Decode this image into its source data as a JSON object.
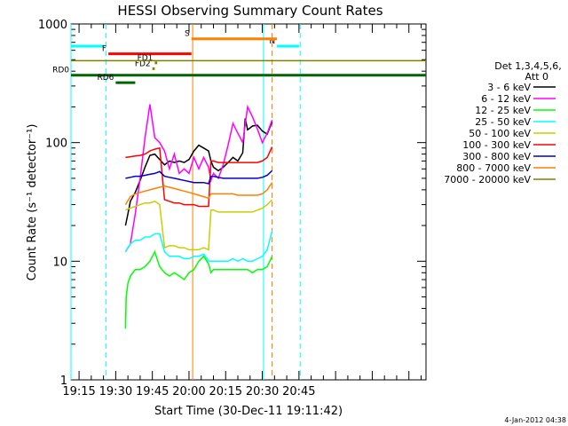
{
  "chart_data": {
    "type": "line",
    "title": "HESSI Observing Summary Count Rates",
    "ylabel": "Count Rate (s⁻¹ detector⁻¹)",
    "xlabel": "Start Time (30-Dec-11 19:11:42)",
    "yscale": "log",
    "ylim": [
      1,
      1000
    ],
    "xlim_minutes": [
      1151.7,
      1297
    ],
    "x_ticks": [
      {
        "label": "19:15",
        "m": 1155
      },
      {
        "label": "19:30",
        "m": 1170
      },
      {
        "label": "19:45",
        "m": 1185
      },
      {
        "label": "20:00",
        "m": 1200
      },
      {
        "label": "20:15",
        "m": 1215
      },
      {
        "label": "20:30",
        "m": 1230
      },
      {
        "label": "20:45",
        "m": 1245
      }
    ],
    "y_ticks": [
      {
        "label": "1",
        "v": 1
      },
      {
        "label": "10",
        "v": 10
      },
      {
        "label": "100",
        "v": 100
      },
      {
        "label": "1000",
        "v": 1000
      }
    ],
    "legend": {
      "title_lines": [
        "Det 1,3,4,5,6,",
        "Att 0"
      ],
      "placement": "right"
    },
    "series": [
      {
        "name": "3 - 6 keV",
        "color": "#000000",
        "points": [
          [
            1174,
            20
          ],
          [
            1175,
            25
          ],
          [
            1176,
            32
          ],
          [
            1178,
            38
          ],
          [
            1180,
            48
          ],
          [
            1182,
            62
          ],
          [
            1184,
            78
          ],
          [
            1186,
            80
          ],
          [
            1188,
            72
          ],
          [
            1190,
            65
          ],
          [
            1192,
            70
          ],
          [
            1194,
            68
          ],
          [
            1196,
            70
          ],
          [
            1198,
            68
          ],
          [
            1200,
            72
          ],
          [
            1202,
            85
          ],
          [
            1204,
            95
          ],
          [
            1206,
            90
          ],
          [
            1208,
            85
          ],
          [
            1209,
            70
          ],
          [
            1210,
            62
          ],
          [
            1212,
            58
          ],
          [
            1214,
            62
          ],
          [
            1216,
            68
          ],
          [
            1218,
            75
          ],
          [
            1220,
            70
          ],
          [
            1222,
            82
          ],
          [
            1223,
            160
          ],
          [
            1224,
            128
          ],
          [
            1226,
            138
          ],
          [
            1228,
            140
          ],
          [
            1230,
            125
          ],
          [
            1232,
            118
          ],
          [
            1234,
            150
          ]
        ]
      },
      {
        "name": "6 - 12 keV",
        "color": "#ff00ff",
        "points": [
          [
            1174,
            12
          ],
          [
            1176,
            14
          ],
          [
            1178,
            25
          ],
          [
            1180,
            50
          ],
          [
            1182,
            110
          ],
          [
            1184,
            210
          ],
          [
            1186,
            110
          ],
          [
            1188,
            100
          ],
          [
            1190,
            85
          ],
          [
            1192,
            60
          ],
          [
            1194,
            80
          ],
          [
            1196,
            55
          ],
          [
            1198,
            60
          ],
          [
            1200,
            55
          ],
          [
            1202,
            75
          ],
          [
            1204,
            60
          ],
          [
            1206,
            75
          ],
          [
            1208,
            62
          ],
          [
            1209,
            48
          ],
          [
            1210,
            55
          ],
          [
            1212,
            50
          ],
          [
            1214,
            65
          ],
          [
            1216,
            95
          ],
          [
            1218,
            145
          ],
          [
            1220,
            120
          ],
          [
            1222,
            100
          ],
          [
            1224,
            200
          ],
          [
            1226,
            165
          ],
          [
            1228,
            130
          ],
          [
            1230,
            100
          ],
          [
            1232,
            120
          ],
          [
            1234,
            155
          ]
        ]
      },
      {
        "name": "12 - 25 keV",
        "color": "#00ff00",
        "points": [
          [
            1174,
            2.7
          ],
          [
            1174.3,
            5
          ],
          [
            1175,
            6.5
          ],
          [
            1176,
            7.5
          ],
          [
            1178,
            8.5
          ],
          [
            1180,
            8.5
          ],
          [
            1182,
            9
          ],
          [
            1184,
            10
          ],
          [
            1186,
            12
          ],
          [
            1188,
            9
          ],
          [
            1190,
            8
          ],
          [
            1192,
            7.5
          ],
          [
            1194,
            8
          ],
          [
            1196,
            7.5
          ],
          [
            1198,
            7
          ],
          [
            1200,
            8
          ],
          [
            1202,
            8.5
          ],
          [
            1204,
            10
          ],
          [
            1206,
            11
          ],
          [
            1208,
            9.5
          ],
          [
            1209,
            8
          ],
          [
            1210,
            8.5
          ],
          [
            1212,
            8.5
          ],
          [
            1214,
            8.5
          ],
          [
            1216,
            8.5
          ],
          [
            1218,
            8.5
          ],
          [
            1220,
            8.5
          ],
          [
            1222,
            8.5
          ],
          [
            1224,
            8.5
          ],
          [
            1226,
            8
          ],
          [
            1228,
            8.5
          ],
          [
            1230,
            8.5
          ],
          [
            1232,
            9
          ],
          [
            1234,
            11
          ]
        ]
      },
      {
        "name": "25 - 50 keV",
        "color": "#00ffff",
        "points": [
          [
            1174,
            12
          ],
          [
            1175,
            13
          ],
          [
            1176,
            14
          ],
          [
            1178,
            15
          ],
          [
            1180,
            15
          ],
          [
            1182,
            16
          ],
          [
            1184,
            16
          ],
          [
            1186,
            17
          ],
          [
            1188,
            17
          ],
          [
            1190,
            12
          ],
          [
            1192,
            11
          ],
          [
            1194,
            11
          ],
          [
            1196,
            11
          ],
          [
            1198,
            10.5
          ],
          [
            1200,
            10.5
          ],
          [
            1202,
            11
          ],
          [
            1204,
            11
          ],
          [
            1206,
            11.5
          ],
          [
            1208,
            10
          ],
          [
            1209,
            10
          ],
          [
            1210,
            10
          ],
          [
            1212,
            10
          ],
          [
            1214,
            10
          ],
          [
            1216,
            10
          ],
          [
            1218,
            10.5
          ],
          [
            1220,
            10
          ],
          [
            1222,
            10.5
          ],
          [
            1224,
            10
          ],
          [
            1226,
            10
          ],
          [
            1228,
            10.5
          ],
          [
            1230,
            11
          ],
          [
            1232,
            12.5
          ],
          [
            1234,
            18
          ]
        ]
      },
      {
        "name": "50 - 100 keV",
        "color": "#cccc00",
        "points": [
          [
            1174,
            27
          ],
          [
            1176,
            28
          ],
          [
            1178,
            29
          ],
          [
            1180,
            30
          ],
          [
            1182,
            31
          ],
          [
            1184,
            31
          ],
          [
            1186,
            32
          ],
          [
            1188,
            30
          ],
          [
            1190,
            13
          ],
          [
            1192,
            13.5
          ],
          [
            1194,
            13.5
          ],
          [
            1196,
            13
          ],
          [
            1198,
            13
          ],
          [
            1200,
            12.5
          ],
          [
            1202,
            12.5
          ],
          [
            1204,
            12.5
          ],
          [
            1206,
            13
          ],
          [
            1208,
            12.5
          ],
          [
            1209,
            27
          ],
          [
            1210,
            27
          ],
          [
            1212,
            26
          ],
          [
            1214,
            26
          ],
          [
            1216,
            26
          ],
          [
            1218,
            26
          ],
          [
            1220,
            26
          ],
          [
            1222,
            26
          ],
          [
            1224,
            26
          ],
          [
            1226,
            26
          ],
          [
            1228,
            27
          ],
          [
            1230,
            28
          ],
          [
            1232,
            30
          ],
          [
            1234,
            33
          ]
        ]
      },
      {
        "name": "100 - 300 keV",
        "color": "#ff0000",
        "points": [
          [
            1174,
            75
          ],
          [
            1176,
            76
          ],
          [
            1178,
            77
          ],
          [
            1180,
            78
          ],
          [
            1182,
            80
          ],
          [
            1184,
            85
          ],
          [
            1186,
            88
          ],
          [
            1188,
            90
          ],
          [
            1190,
            33
          ],
          [
            1192,
            32
          ],
          [
            1194,
            31
          ],
          [
            1196,
            31
          ],
          [
            1198,
            30
          ],
          [
            1200,
            30
          ],
          [
            1202,
            30
          ],
          [
            1204,
            29
          ],
          [
            1206,
            29
          ],
          [
            1208,
            29
          ],
          [
            1209,
            70
          ],
          [
            1210,
            70
          ],
          [
            1212,
            68
          ],
          [
            1214,
            68
          ],
          [
            1216,
            68
          ],
          [
            1218,
            68
          ],
          [
            1220,
            68
          ],
          [
            1222,
            68
          ],
          [
            1224,
            68
          ],
          [
            1226,
            68
          ],
          [
            1228,
            68
          ],
          [
            1230,
            70
          ],
          [
            1232,
            75
          ],
          [
            1234,
            92
          ]
        ]
      },
      {
        "name": "300 - 800 keV",
        "color": "#0000cc",
        "points": [
          [
            1174,
            50
          ],
          [
            1176,
            51
          ],
          [
            1178,
            52
          ],
          [
            1180,
            52
          ],
          [
            1182,
            53
          ],
          [
            1184,
            54
          ],
          [
            1186,
            55
          ],
          [
            1188,
            57
          ],
          [
            1190,
            52
          ],
          [
            1192,
            51
          ],
          [
            1194,
            50
          ],
          [
            1196,
            49
          ],
          [
            1198,
            48
          ],
          [
            1200,
            47
          ],
          [
            1202,
            46
          ],
          [
            1204,
            46
          ],
          [
            1206,
            46
          ],
          [
            1208,
            45
          ],
          [
            1209,
            52
          ],
          [
            1210,
            52
          ],
          [
            1212,
            51
          ],
          [
            1214,
            50
          ],
          [
            1216,
            50
          ],
          [
            1218,
            50
          ],
          [
            1220,
            50
          ],
          [
            1222,
            50
          ],
          [
            1224,
            50
          ],
          [
            1226,
            50
          ],
          [
            1228,
            50
          ],
          [
            1230,
            51
          ],
          [
            1232,
            53
          ],
          [
            1234,
            58
          ]
        ]
      },
      {
        "name": "800 - 7000 keV",
        "color": "#ff8000",
        "points": [
          [
            1174,
            30
          ],
          [
            1176,
            35
          ],
          [
            1178,
            37
          ],
          [
            1180,
            38
          ],
          [
            1182,
            39
          ],
          [
            1184,
            40
          ],
          [
            1186,
            41
          ],
          [
            1188,
            42
          ],
          [
            1190,
            43
          ],
          [
            1192,
            42
          ],
          [
            1194,
            41
          ],
          [
            1196,
            40
          ],
          [
            1198,
            39
          ],
          [
            1200,
            38
          ],
          [
            1202,
            37
          ],
          [
            1204,
            36
          ],
          [
            1206,
            35
          ],
          [
            1208,
            34
          ],
          [
            1209,
            37
          ],
          [
            1210,
            37
          ],
          [
            1212,
            37
          ],
          [
            1214,
            37
          ],
          [
            1216,
            37
          ],
          [
            1218,
            37
          ],
          [
            1220,
            36
          ],
          [
            1222,
            36
          ],
          [
            1224,
            36
          ],
          [
            1226,
            36
          ],
          [
            1228,
            36
          ],
          [
            1230,
            37
          ],
          [
            1232,
            40
          ],
          [
            1234,
            46
          ]
        ]
      },
      {
        "name": "7000 - 20000 keV",
        "color": "#808000",
        "points": [
          [
            1151.7,
            490
          ],
          [
            1297,
            490
          ]
        ]
      }
    ],
    "flags": [
      {
        "label": "N",
        "color": "#00ffff",
        "segments": [
          [
            1151.7,
            1165
          ],
          [
            1236,
            1245
          ]
        ],
        "value": 650
      },
      {
        "label": "S",
        "color": "#ff8000",
        "segments": [
          [
            1201,
            1236
          ]
        ],
        "value": 750
      },
      {
        "label": "F",
        "color": "#ff0000",
        "segments": [
          [
            1167,
            1201
          ]
        ],
        "value": 560
      },
      {
        "label": "FD1",
        "color": "#808000",
        "segments": [
          [
            1186,
            1187
          ]
        ],
        "value": 470
      },
      {
        "label": "FD2",
        "color": "#808000",
        "segments": [
          [
            1185,
            1186
          ]
        ],
        "value": 420
      },
      {
        "label": "RD0",
        "color": "#006400",
        "segments": [
          [
            1151.7,
            1297
          ]
        ],
        "value": 370
      },
      {
        "label": "RD6",
        "color": "#006400",
        "segments": [
          [
            1170,
            1178
          ]
        ],
        "value": 320
      }
    ],
    "vlines": [
      {
        "m": 1151.7,
        "color": "#00ffff",
        "dash": false
      },
      {
        "m": 1166,
        "color": "#00ffff",
        "dash": true
      },
      {
        "m": 1201.5,
        "color": "#ff8000",
        "dash": false
      },
      {
        "m": 1230.5,
        "color": "#00ffff",
        "dash": false
      },
      {
        "m": 1234,
        "color": "#ff8000",
        "dash": true
      },
      {
        "m": 1245.5,
        "color": "#00ffff",
        "dash": true
      }
    ],
    "date_stamp": "4-Jan-2012 04:38"
  }
}
